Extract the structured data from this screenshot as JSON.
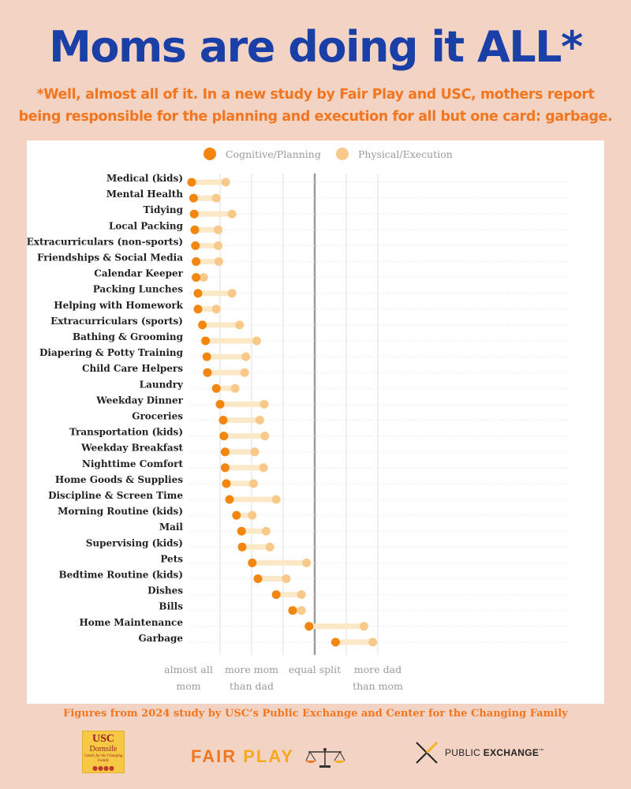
{
  "header": {
    "title": "Moms are doing it ALL*",
    "subtitle_line1": "*Well, almost all of it. In a new study by Fair Play and USC, mothers report",
    "subtitle_line2": "being responsible for the planning and execution for all but one card: garbage."
  },
  "chart_data": {
    "type": "dumbbell",
    "legend": [
      {
        "name": "Cognitive/Planning",
        "color": "#f2860f"
      },
      {
        "name": "Physical/Execution",
        "color": "#f8c98a"
      }
    ],
    "legend_placement": "top-center",
    "x_tick_labels": [
      {
        "value": 1,
        "line1": "almost all",
        "line2": "mom"
      },
      {
        "value": 2,
        "line1": "more mom",
        "line2": "than dad"
      },
      {
        "value": 3,
        "line1": "equal split",
        "line2": ""
      },
      {
        "value": 4,
        "line1": "more dad",
        "line2": "than mom"
      }
    ],
    "xlim": [
      0.9,
      4.2
    ],
    "equal_split_value": 3,
    "gridlines": [
      1.5,
      2,
      2.5,
      3.5,
      4
    ],
    "categories": [
      "Medical (kids)",
      "Mental Health",
      "Tidying",
      "Local Packing",
      "Extracurriculars (non-sports)",
      "Friendships & Social Media",
      "Calendar Keeper",
      "Packing Lunches",
      "Helping with Homework",
      "Extracurriculars (sports)",
      "Bathing & Grooming",
      "Diapering & Potty Training",
      "Child Care Helpers",
      "Laundry",
      "Weekday Dinner",
      "Groceries",
      "Transportation (kids)",
      "Weekday Breakfast",
      "Nighttime Comfort",
      "Home Goods & Supplies",
      "Discipline & Screen Time",
      "Morning Routine (kids)",
      "Mail",
      "Supervising (kids)",
      "Pets",
      "Bedtime Routine (kids)",
      "Dishes",
      "Bills",
      "Home Maintenance",
      "Garbage"
    ],
    "series": [
      {
        "name": "Cognitive/Planning",
        "values": [
          1.05,
          1.08,
          1.09,
          1.1,
          1.11,
          1.12,
          1.12,
          1.15,
          1.15,
          1.22,
          1.27,
          1.29,
          1.3,
          1.44,
          1.5,
          1.55,
          1.56,
          1.58,
          1.58,
          1.6,
          1.65,
          1.76,
          1.84,
          1.85,
          2.01,
          2.1,
          2.39,
          2.65,
          2.91,
          3.33
        ]
      },
      {
        "name": "Physical/Execution",
        "values": [
          1.59,
          1.44,
          1.69,
          1.47,
          1.47,
          1.48,
          1.24,
          1.69,
          1.44,
          1.81,
          2.08,
          1.91,
          1.89,
          1.74,
          2.2,
          2.13,
          2.21,
          2.05,
          2.19,
          2.03,
          2.39,
          2.01,
          2.23,
          2.29,
          2.87,
          2.55,
          2.79,
          2.79,
          3.78,
          3.92
        ]
      }
    ]
  },
  "footnote": "Figures from 2024 study by USC’s Public Exchange and Center for the Changing Family",
  "logos": {
    "usc": "USC",
    "dornsife": "Dornsife",
    "usc_center": "Center for the Changing Family",
    "fair": "FAIR",
    "play": "PLAY",
    "public": "PUBLIC",
    "exchange": "EXCHANGE",
    "tm": "™"
  }
}
